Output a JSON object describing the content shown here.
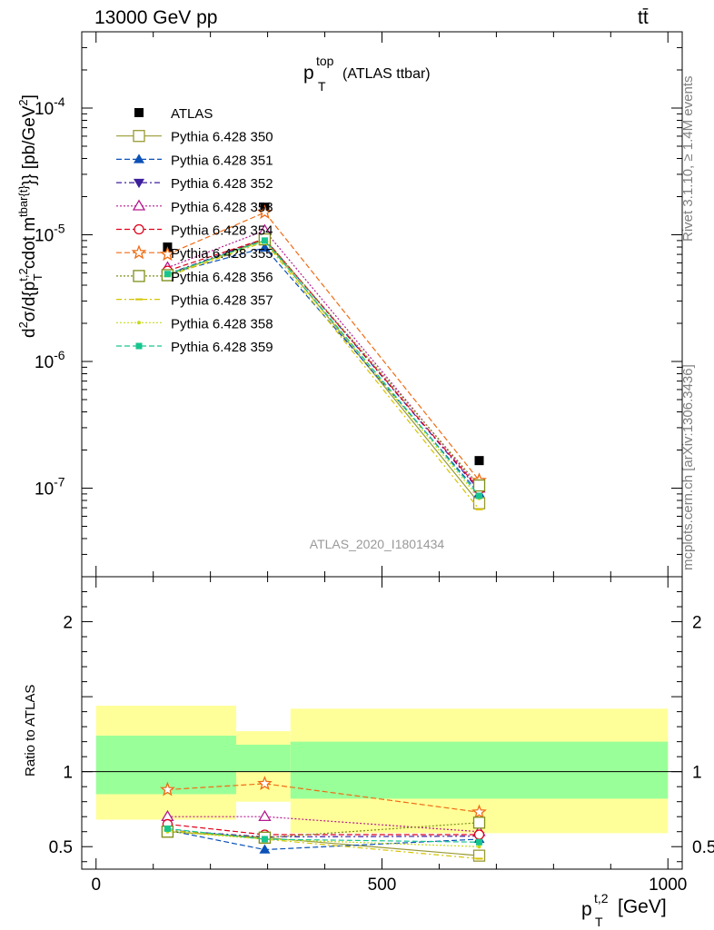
{
  "header": {
    "energy_label": "13000 GeV pp",
    "process_label": "tt̄"
  },
  "side": {
    "rivet_label": "Rivet 3.1.10, ≥ 1.4M events",
    "mcplots_label": "mcplots.cern.ch [arXiv:1306.3436]"
  },
  "chart_data": [
    {
      "type": "scatter",
      "title_main": "p",
      "title_sup": "top",
      "title_sub": "T",
      "title_rest": "(ATLAS ttbar)",
      "watermark": "ATLAS_2020_I1801434",
      "ylabel": "d²σ/d{p_T^{t,2} \\cdot m^{tbar{t}}} [pb/GeV²]",
      "yscale": "log",
      "ylim": [
        2e-08,
        0.0004
      ],
      "xlim": [
        -25,
        1025
      ],
      "x": [
        125,
        295,
        670
      ],
      "yticks": [
        "10^{-7}",
        "10^{-6}",
        "10^{-5}",
        "10^{-4}"
      ],
      "series": [
        {
          "name": "ATLAS",
          "color": "#000000",
          "marker": "filled-square",
          "values": [
            8e-06,
            1.65e-05,
            1.65e-07
          ]
        },
        {
          "name": "Pythia 6.428 350",
          "color": "#999933",
          "marker": "open-square",
          "dash": "",
          "values": [
            4.8e-06,
            9.2e-06,
            7.6e-08
          ]
        },
        {
          "name": "Pythia 6.428 351",
          "color": "#0b51b8",
          "marker": "filled-triangle-up",
          "dash": "6,3",
          "values": [
            4.9e-06,
            7.9e-06,
            9.1e-08
          ]
        },
        {
          "name": "Pythia 6.428 352",
          "color": "#3d1f9e",
          "marker": "filled-triangle-down",
          "dash": "6,3,2,3",
          "values": [
            4.9e-06,
            9.3e-06,
            9.6e-08
          ]
        },
        {
          "name": "Pythia 6.428 353",
          "color": "#b5198f",
          "marker": "open-triangle-up",
          "dash": "2,2",
          "values": [
            5.5e-06,
            1.08e-05,
            1e-07
          ]
        },
        {
          "name": "Pythia 6.428 354",
          "color": "#e0001b",
          "marker": "open-circle",
          "dash": "6,3",
          "values": [
            5.2e-06,
            9.3e-06,
            9.8e-08
          ]
        },
        {
          "name": "Pythia 6.428 355",
          "color": "#f06b14",
          "marker": "open-star",
          "dash": "6,3",
          "values": [
            7e-06,
            1.5e-05,
            1.15e-07
          ]
        },
        {
          "name": "Pythia 6.428 356",
          "color": "#7f8f1a",
          "marker": "open-square",
          "dash": "2,2",
          "values": [
            4.8e-06,
            9.2e-06,
            1.05e-07
          ]
        },
        {
          "name": "Pythia 6.428 357",
          "color": "#d6c400",
          "marker": "dash-dot",
          "dash": "6,3,2,3",
          "values": [
            4.7e-06,
            8.8e-06,
            6.8e-08
          ]
        },
        {
          "name": "Pythia 6.428 358",
          "color": "#c7db17",
          "marker": "dot",
          "dash": "2,2",
          "values": [
            4.8e-06,
            9e-06,
            8.3e-08
          ]
        },
        {
          "name": "Pythia 6.428 359",
          "color": "#17c58f",
          "marker": "filled-square-small",
          "dash": "6,3",
          "values": [
            4.9e-06,
            9e-06,
            8.7e-08
          ]
        }
      ]
    },
    {
      "type": "scatter",
      "ylabel": "Ratio to ATLAS",
      "xlabel_main": "p",
      "xlabel_sup": "t,2",
      "xlabel_sub": "T",
      "xlabel_rest": "[GeV]",
      "ylim": [
        0.35,
        2.3
      ],
      "xlim": [
        -25,
        1025
      ],
      "yticks": [
        "0.5",
        "1",
        "2"
      ],
      "xticks": [
        "0",
        "500",
        "1000"
      ],
      "x": [
        125,
        295,
        670
      ],
      "bands": [
        {
          "x_low": 0,
          "x_high": 245,
          "yellow": [
            0.68,
            1.44
          ],
          "green": [
            0.85,
            1.24
          ]
        },
        {
          "x_low": 245,
          "x_high": 340,
          "yellow": [
            0.8,
            1.27
          ],
          "green": [
            1.0,
            1.18
          ]
        },
        {
          "x_low": 340,
          "x_high": 1000,
          "yellow": [
            0.59,
            1.42
          ],
          "green": [
            0.82,
            1.2
          ]
        }
      ],
      "series": [
        {
          "name": "Pythia 6.428 350",
          "values": [
            0.6,
            0.56,
            0.44
          ]
        },
        {
          "name": "Pythia 6.428 351",
          "values": [
            0.61,
            0.48,
            0.55
          ]
        },
        {
          "name": "Pythia 6.428 352",
          "values": [
            0.61,
            0.565,
            0.57
          ]
        },
        {
          "name": "Pythia 6.428 353",
          "values": [
            0.7,
            0.7,
            0.6
          ]
        },
        {
          "name": "Pythia 6.428 354",
          "values": [
            0.65,
            0.58,
            0.58
          ]
        },
        {
          "name": "Pythia 6.428 355",
          "values": [
            0.88,
            0.92,
            0.73
          ]
        },
        {
          "name": "Pythia 6.428 356",
          "values": [
            0.6,
            0.56,
            0.66
          ]
        },
        {
          "name": "Pythia 6.428 357",
          "values": [
            0.61,
            0.55,
            0.42
          ]
        },
        {
          "name": "Pythia 6.428 358",
          "values": [
            0.6,
            0.55,
            0.5
          ]
        },
        {
          "name": "Pythia 6.428 359",
          "values": [
            0.62,
            0.55,
            0.53
          ]
        }
      ]
    }
  ]
}
